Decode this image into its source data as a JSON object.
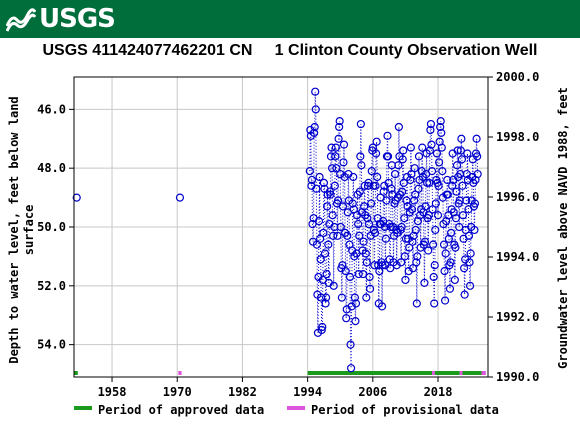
{
  "header": {
    "logo_text": "USGS",
    "logo_color": "#006e3b",
    "title": "USGS 411424077462201 CN     1 Clinton County Observation Well"
  },
  "chart_data": {
    "type": "scatter",
    "x_ticks": [
      "1958",
      "1970",
      "1982",
      "1994",
      "2006",
      "2018"
    ],
    "x_tick_years": [
      1958,
      1970,
      1982,
      1994,
      2006,
      2018
    ],
    "xlim": [
      1951.0,
      2027.2
    ],
    "left_axis": {
      "label_line1": "Depth to water level, feet below land",
      "label_line2": "surface",
      "ylim": [
        55.1,
        44.9
      ],
      "ticks": [
        "46.0",
        "48.0",
        "50.0",
        "52.0",
        "54.0"
      ],
      "tick_values": [
        46,
        48,
        50,
        52,
        54
      ]
    },
    "right_axis": {
      "label": "Groundwater level above NAVD 1988, feet",
      "ylim": [
        1990.0,
        2000.0
      ],
      "ticks": [
        "1990.0",
        "1992.0",
        "1994.0",
        "1996.0",
        "1998.0",
        "2000.0"
      ],
      "tick_values": [
        1990,
        1992,
        1994,
        1996,
        1998,
        2000
      ]
    },
    "marker_color": "#0000cc",
    "grid": true,
    "legend": [
      {
        "label": "Period of approved data",
        "color": "#1b9a1b"
      },
      {
        "label": "Period of provisional data",
        "color": "#dd55dd"
      }
    ],
    "approved_periods": [
      [
        1951.0,
        1951.7
      ],
      [
        1994.0,
        2016.9
      ],
      [
        2017.4,
        2022.0
      ],
      [
        2022.5,
        2026.0
      ]
    ],
    "provisional_periods": [
      [
        1970.2,
        1970.8
      ],
      [
        2016.9,
        2017.4
      ],
      [
        2022.0,
        2022.5
      ],
      [
        2026.0,
        2026.8
      ]
    ],
    "isolated_points": [
      {
        "x": 1951.5,
        "y": 49.0
      },
      {
        "x": 1970.5,
        "y": 49.0
      }
    ],
    "series": [
      {
        "x": 1994.4,
        "y": 48.1
      },
      {
        "x": 1994.5,
        "y": 46.7
      },
      {
        "x": 1994.6,
        "y": 46.9
      },
      {
        "x": 1994.7,
        "y": 48.6
      },
      {
        "x": 1994.8,
        "y": 48.4
      },
      {
        "x": 1994.9,
        "y": 49.9
      },
      {
        "x": 1995.0,
        "y": 50.5
      },
      {
        "x": 1995.1,
        "y": 49.7
      },
      {
        "x": 1995.2,
        "y": 46.8
      },
      {
        "x": 1995.3,
        "y": 46.6
      },
      {
        "x": 1995.4,
        "y": 45.4
      },
      {
        "x": 1995.5,
        "y": 46.0
      },
      {
        "x": 1995.6,
        "y": 48.7
      },
      {
        "x": 1995.7,
        "y": 50.6
      },
      {
        "x": 1995.8,
        "y": 52.3
      },
      {
        "x": 1995.9,
        "y": 53.6
      },
      {
        "x": 1996.0,
        "y": 51.7
      },
      {
        "x": 1996.1,
        "y": 49.8
      },
      {
        "x": 1996.2,
        "y": 48.3
      },
      {
        "x": 1996.3,
        "y": 50.4
      },
      {
        "x": 1996.4,
        "y": 51.1
      },
      {
        "x": 1996.5,
        "y": 52.4
      },
      {
        "x": 1996.6,
        "y": 53.5
      },
      {
        "x": 1996.7,
        "y": 53.4
      },
      {
        "x": 1996.8,
        "y": 51.8
      },
      {
        "x": 1996.9,
        "y": 50.2
      },
      {
        "x": 1997.0,
        "y": 48.5
      },
      {
        "x": 1997.1,
        "y": 48.7
      },
      {
        "x": 1997.2,
        "y": 50.9
      },
      {
        "x": 1997.3,
        "y": 52.6
      },
      {
        "x": 1997.4,
        "y": 52.4
      },
      {
        "x": 1997.5,
        "y": 51.6
      },
      {
        "x": 1997.6,
        "y": 49.3
      },
      {
        "x": 1997.7,
        "y": 48.9
      },
      {
        "x": 1997.8,
        "y": 50.6
      },
      {
        "x": 1997.9,
        "y": 51.9
      },
      {
        "x": 1998.0,
        "y": 49.9
      },
      {
        "x": 1998.1,
        "y": 48.8
      },
      {
        "x": 1998.2,
        "y": 48.9
      },
      {
        "x": 1998.3,
        "y": 47.6
      },
      {
        "x": 1998.4,
        "y": 47.3
      },
      {
        "x": 1998.5,
        "y": 48.0
      },
      {
        "x": 1998.6,
        "y": 49.6
      },
      {
        "x": 1998.7,
        "y": 50.3
      },
      {
        "x": 1998.8,
        "y": 52.0
      },
      {
        "x": 1998.9,
        "y": 50.0
      },
      {
        "x": 1999.0,
        "y": 48.6
      },
      {
        "x": 1999.1,
        "y": 47.6
      },
      {
        "x": 1999.2,
        "y": 47.3
      },
      {
        "x": 1999.3,
        "y": 48.0
      },
      {
        "x": 1999.4,
        "y": 49.2
      },
      {
        "x": 1999.5,
        "y": 50.3
      },
      {
        "x": 1999.6,
        "y": 49.1
      },
      {
        "x": 1999.7,
        "y": 47.0
      },
      {
        "x": 1999.8,
        "y": 46.6
      },
      {
        "x": 1999.9,
        "y": 46.4
      },
      {
        "x": 2000.0,
        "y": 48.2
      },
      {
        "x": 2000.1,
        "y": 50.0
      },
      {
        "x": 2000.2,
        "y": 51.4
      },
      {
        "x": 2000.3,
        "y": 52.4
      },
      {
        "x": 2000.4,
        "y": 51.3
      },
      {
        "x": 2000.5,
        "y": 49.3
      },
      {
        "x": 2000.6,
        "y": 47.8
      },
      {
        "x": 2000.7,
        "y": 47.2
      },
      {
        "x": 2000.8,
        "y": 48.3
      },
      {
        "x": 2000.9,
        "y": 50.2
      },
      {
        "x": 2001.0,
        "y": 51.5
      },
      {
        "x": 2001.1,
        "y": 53.1
      },
      {
        "x": 2001.2,
        "y": 52.8
      },
      {
        "x": 2001.3,
        "y": 50.3
      },
      {
        "x": 2001.4,
        "y": 49.5
      },
      {
        "x": 2001.5,
        "y": 48.2
      },
      {
        "x": 2001.6,
        "y": 49.1
      },
      {
        "x": 2001.7,
        "y": 50.6
      },
      {
        "x": 2001.8,
        "y": 51.7
      },
      {
        "x": 2001.9,
        "y": 54.0
      },
      {
        "x": 2002.0,
        "y": 54.8
      },
      {
        "x": 2002.1,
        "y": 52.7
      },
      {
        "x": 2002.2,
        "y": 50.8
      },
      {
        "x": 2002.3,
        "y": 49.2
      },
      {
        "x": 2002.4,
        "y": 48.3
      },
      {
        "x": 2002.5,
        "y": 49.4
      },
      {
        "x": 2002.6,
        "y": 51.0
      },
      {
        "x": 2002.7,
        "y": 52.4
      },
      {
        "x": 2002.8,
        "y": 53.2
      },
      {
        "x": 2002.9,
        "y": 52.6
      },
      {
        "x": 2003.0,
        "y": 50.9
      },
      {
        "x": 2003.1,
        "y": 49.6
      },
      {
        "x": 2003.2,
        "y": 48.9
      },
      {
        "x": 2003.3,
        "y": 49.9
      },
      {
        "x": 2003.4,
        "y": 51.6
      },
      {
        "x": 2003.5,
        "y": 50.3
      },
      {
        "x": 2003.6,
        "y": 48.8
      },
      {
        "x": 2003.7,
        "y": 47.6
      },
      {
        "x": 2003.8,
        "y": 46.5
      },
      {
        "x": 2003.9,
        "y": 47.9
      },
      {
        "x": 2004.0,
        "y": 49.5
      },
      {
        "x": 2004.1,
        "y": 50.8
      },
      {
        "x": 2004.2,
        "y": 51.6
      },
      {
        "x": 2004.3,
        "y": 50.5
      },
      {
        "x": 2004.4,
        "y": 49.3
      },
      {
        "x": 2004.5,
        "y": 48.6
      },
      {
        "x": 2004.6,
        "y": 49.6
      },
      {
        "x": 2004.7,
        "y": 50.9
      },
      {
        "x": 2004.8,
        "y": 52.4
      },
      {
        "x": 2004.9,
        "y": 51.2
      },
      {
        "x": 2005.0,
        "y": 49.7
      },
      {
        "x": 2005.1,
        "y": 48.6
      },
      {
        "x": 2005.2,
        "y": 48.5
      },
      {
        "x": 2005.3,
        "y": 49.9
      },
      {
        "x": 2005.4,
        "y": 51.7
      },
      {
        "x": 2005.5,
        "y": 52.1
      },
      {
        "x": 2005.6,
        "y": 50.3
      },
      {
        "x": 2005.7,
        "y": 49.2
      },
      {
        "x": 2005.8,
        "y": 48.1
      },
      {
        "x": 2005.9,
        "y": 47.4
      },
      {
        "x": 2006.0,
        "y": 47.3
      },
      {
        "x": 2006.1,
        "y": 48.6
      },
      {
        "x": 2006.2,
        "y": 50.1
      },
      {
        "x": 2006.3,
        "y": 51.3
      },
      {
        "x": 2006.4,
        "y": 50.2
      },
      {
        "x": 2006.5,
        "y": 48.6
      },
      {
        "x": 2006.6,
        "y": 47.5
      },
      {
        "x": 2006.7,
        "y": 47.1
      },
      {
        "x": 2006.8,
        "y": 48.3
      },
      {
        "x": 2006.9,
        "y": 49.7
      },
      {
        "x": 2007.0,
        "y": 51.3
      },
      {
        "x": 2007.1,
        "y": 52.6
      },
      {
        "x": 2007.2,
        "y": 51.5
      },
      {
        "x": 2007.3,
        "y": 49.9
      },
      {
        "x": 2007.4,
        "y": 49.0
      },
      {
        "x": 2007.5,
        "y": 49.9
      },
      {
        "x": 2007.6,
        "y": 51.2
      },
      {
        "x": 2007.7,
        "y": 52.7
      },
      {
        "x": 2007.8,
        "y": 51.3
      },
      {
        "x": 2007.9,
        "y": 49.8
      },
      {
        "x": 2008.0,
        "y": 48.8
      },
      {
        "x": 2008.1,
        "y": 48.6
      },
      {
        "x": 2008.2,
        "y": 50.0
      },
      {
        "x": 2008.3,
        "y": 51.3
      },
      {
        "x": 2008.4,
        "y": 50.4
      },
      {
        "x": 2008.5,
        "y": 49.1
      },
      {
        "x": 2008.6,
        "y": 47.6
      },
      {
        "x": 2008.7,
        "y": 46.9
      },
      {
        "x": 2008.8,
        "y": 47.6
      },
      {
        "x": 2008.9,
        "y": 48.5
      },
      {
        "x": 2009.0,
        "y": 49.9
      },
      {
        "x": 2009.1,
        "y": 51.1
      },
      {
        "x": 2009.2,
        "y": 51.4
      },
      {
        "x": 2009.3,
        "y": 50.0
      },
      {
        "x": 2009.4,
        "y": 48.7
      },
      {
        "x": 2009.5,
        "y": 47.9
      },
      {
        "x": 2009.6,
        "y": 48.9
      },
      {
        "x": 2009.7,
        "y": 50.0
      },
      {
        "x": 2009.8,
        "y": 51.2
      },
      {
        "x": 2009.9,
        "y": 50.3
      },
      {
        "x": 2010.0,
        "y": 49.2
      },
      {
        "x": 2010.1,
        "y": 48.2
      },
      {
        "x": 2010.2,
        "y": 49.1
      },
      {
        "x": 2010.3,
        "y": 50.1
      },
      {
        "x": 2010.4,
        "y": 51.3
      },
      {
        "x": 2010.5,
        "y": 50.2
      },
      {
        "x": 2010.6,
        "y": 49.0
      },
      {
        "x": 2010.7,
        "y": 47.9
      },
      {
        "x": 2010.8,
        "y": 46.6
      },
      {
        "x": 2010.9,
        "y": 47.6
      },
      {
        "x": 2011.0,
        "y": 48.9
      },
      {
        "x": 2011.1,
        "y": 50.1
      },
      {
        "x": 2011.2,
        "y": 51.2
      },
      {
        "x": 2011.3,
        "y": 50.0
      },
      {
        "x": 2011.4,
        "y": 48.8
      },
      {
        "x": 2011.5,
        "y": 47.7
      },
      {
        "x": 2011.6,
        "y": 47.4
      },
      {
        "x": 2011.7,
        "y": 48.5
      },
      {
        "x": 2011.8,
        "y": 49.7
      },
      {
        "x": 2011.9,
        "y": 51.0
      },
      {
        "x": 2012.0,
        "y": 51.8
      },
      {
        "x": 2012.1,
        "y": 50.4
      },
      {
        "x": 2012.2,
        "y": 49.1
      },
      {
        "x": 2012.3,
        "y": 48.3
      },
      {
        "x": 2012.4,
        "y": 49.3
      },
      {
        "x": 2012.5,
        "y": 50.4
      },
      {
        "x": 2012.6,
        "y": 51.5
      },
      {
        "x": 2012.7,
        "y": 50.7
      },
      {
        "x": 2012.8,
        "y": 49.5
      },
      {
        "x": 2012.9,
        "y": 48.4
      },
      {
        "x": 2013.0,
        "y": 47.3
      },
      {
        "x": 2013.1,
        "y": 48.2
      },
      {
        "x": 2013.2,
        "y": 49.4
      },
      {
        "x": 2013.3,
        "y": 50.5
      },
      {
        "x": 2013.4,
        "y": 51.4
      },
      {
        "x": 2013.5,
        "y": 50.3
      },
      {
        "x": 2013.6,
        "y": 49.1
      },
      {
        "x": 2013.7,
        "y": 48.0
      },
      {
        "x": 2013.8,
        "y": 48.9
      },
      {
        "x": 2013.9,
        "y": 50.1
      },
      {
        "x": 2014.0,
        "y": 51.2
      },
      {
        "x": 2014.1,
        "y": 52.6
      },
      {
        "x": 2014.2,
        "y": 51.0
      },
      {
        "x": 2014.3,
        "y": 49.8
      },
      {
        "x": 2014.4,
        "y": 48.7
      },
      {
        "x": 2014.5,
        "y": 47.6
      },
      {
        "x": 2014.6,
        "y": 48.4
      },
      {
        "x": 2014.7,
        "y": 49.6
      },
      {
        "x": 2014.8,
        "y": 50.7
      },
      {
        "x": 2014.9,
        "y": 49.4
      },
      {
        "x": 2015.0,
        "y": 48.1
      },
      {
        "x": 2015.1,
        "y": 47.3
      },
      {
        "x": 2015.2,
        "y": 48.3
      },
      {
        "x": 2015.3,
        "y": 49.5
      },
      {
        "x": 2015.4,
        "y": 50.6
      },
      {
        "x": 2015.5,
        "y": 51.9
      },
      {
        "x": 2015.6,
        "y": 50.5
      },
      {
        "x": 2015.7,
        "y": 49.3
      },
      {
        "x": 2015.8,
        "y": 48.2
      },
      {
        "x": 2015.9,
        "y": 47.5
      },
      {
        "x": 2016.0,
        "y": 48.5
      },
      {
        "x": 2016.1,
        "y": 49.7
      },
      {
        "x": 2016.2,
        "y": 50.8
      },
      {
        "x": 2016.3,
        "y": 49.6
      },
      {
        "x": 2016.4,
        "y": 48.5
      },
      {
        "x": 2016.5,
        "y": 47.4
      },
      {
        "x": 2016.6,
        "y": 46.7
      },
      {
        "x": 2016.7,
        "y": 46.5
      },
      {
        "x": 2016.8,
        "y": 47.2
      },
      {
        "x": 2016.9,
        "y": 48.1
      },
      {
        "x": 2017.0,
        "y": 49.4
      },
      {
        "x": 2017.1,
        "y": 50.6
      },
      {
        "x": 2017.2,
        "y": 51.7
      },
      {
        "x": 2017.3,
        "y": 52.6
      },
      {
        "x": 2017.4,
        "y": 51.3
      },
      {
        "x": 2017.5,
        "y": 50.1
      },
      {
        "x": 2017.6,
        "y": 49.2
      },
      {
        "x": 2017.7,
        "y": 48.4
      },
      {
        "x": 2017.8,
        "y": 47.5
      },
      {
        "x": 2017.9,
        "y": 48.5
      },
      {
        "x": 2018.0,
        "y": 49.6
      },
      {
        "x": 2018.1,
        "y": 48.6
      },
      {
        "x": 2018.2,
        "y": 47.8
      },
      {
        "x": 2018.3,
        "y": 47.1
      },
      {
        "x": 2018.4,
        "y": 46.6
      },
      {
        "x": 2018.5,
        "y": 46.4
      },
      {
        "x": 2018.6,
        "y": 46.8
      },
      {
        "x": 2018.7,
        "y": 47.3
      },
      {
        "x": 2018.8,
        "y": 48.1
      },
      {
        "x": 2018.9,
        "y": 49.0
      },
      {
        "x": 2019.0,
        "y": 49.9
      },
      {
        "x": 2019.1,
        "y": 50.6
      },
      {
        "x": 2019.2,
        "y": 51.5
      },
      {
        "x": 2019.3,
        "y": 52.5
      },
      {
        "x": 2019.4,
        "y": 50.9
      },
      {
        "x": 2019.5,
        "y": 49.8
      },
      {
        "x": 2019.6,
        "y": 48.9
      },
      {
        "x": 2019.7,
        "y": 48.4
      },
      {
        "x": 2019.8,
        "y": 48.9
      },
      {
        "x": 2019.9,
        "y": 49.6
      },
      {
        "x": 2020.0,
        "y": 50.4
      },
      {
        "x": 2020.1,
        "y": 51.3
      },
      {
        "x": 2020.2,
        "y": 52.1
      },
      {
        "x": 2020.3,
        "y": 51.2
      },
      {
        "x": 2020.4,
        "y": 50.2
      },
      {
        "x": 2020.5,
        "y": 49.4
      },
      {
        "x": 2020.6,
        "y": 48.6
      },
      {
        "x": 2020.7,
        "y": 47.5
      },
      {
        "x": 2020.8,
        "y": 48.4
      },
      {
        "x": 2020.9,
        "y": 49.5
      },
      {
        "x": 2021.0,
        "y": 50.6
      },
      {
        "x": 2021.1,
        "y": 51.8
      },
      {
        "x": 2021.2,
        "y": 50.7
      },
      {
        "x": 2021.3,
        "y": 49.7
      },
      {
        "x": 2021.4,
        "y": 48.8
      },
      {
        "x": 2021.5,
        "y": 47.9
      },
      {
        "x": 2021.6,
        "y": 47.4
      },
      {
        "x": 2021.7,
        "y": 48.3
      },
      {
        "x": 2021.8,
        "y": 49.2
      },
      {
        "x": 2021.9,
        "y": 50.0
      },
      {
        "x": 2022.0,
        "y": 49.1
      },
      {
        "x": 2022.1,
        "y": 48.2
      },
      {
        "x": 2022.2,
        "y": 47.4
      },
      {
        "x": 2022.3,
        "y": 47.0
      },
      {
        "x": 2022.4,
        "y": 47.7
      },
      {
        "x": 2022.5,
        "y": 48.6
      },
      {
        "x": 2022.6,
        "y": 49.6
      },
      {
        "x": 2022.7,
        "y": 50.4
      },
      {
        "x": 2022.8,
        "y": 51.4
      },
      {
        "x": 2022.9,
        "y": 52.3
      },
      {
        "x": 2023.0,
        "y": 51.1
      },
      {
        "x": 2023.1,
        "y": 50.1
      },
      {
        "x": 2023.2,
        "y": 49.1
      },
      {
        "x": 2023.3,
        "y": 48.2
      },
      {
        "x": 2023.4,
        "y": 47.5
      },
      {
        "x": 2023.5,
        "y": 48.4
      },
      {
        "x": 2023.6,
        "y": 49.4
      },
      {
        "x": 2023.7,
        "y": 50.3
      },
      {
        "x": 2023.8,
        "y": 51.2
      },
      {
        "x": 2023.9,
        "y": 52.0
      },
      {
        "x": 2024.0,
        "y": 50.9
      },
      {
        "x": 2024.1,
        "y": 50.0
      },
      {
        "x": 2024.2,
        "y": 49.1
      },
      {
        "x": 2024.3,
        "y": 48.3
      },
      {
        "x": 2024.4,
        "y": 47.7
      },
      {
        "x": 2024.5,
        "y": 48.5
      },
      {
        "x": 2024.6,
        "y": 49.3
      },
      {
        "x": 2024.7,
        "y": 50.1
      },
      {
        "x": 2024.8,
        "y": 49.2
      },
      {
        "x": 2024.9,
        "y": 48.4
      },
      {
        "x": 2025.0,
        "y": 47.5
      },
      {
        "x": 2025.1,
        "y": 47.0
      },
      {
        "x": 2025.2,
        "y": 47.6
      },
      {
        "x": 2025.3,
        "y": 48.2
      }
    ]
  }
}
